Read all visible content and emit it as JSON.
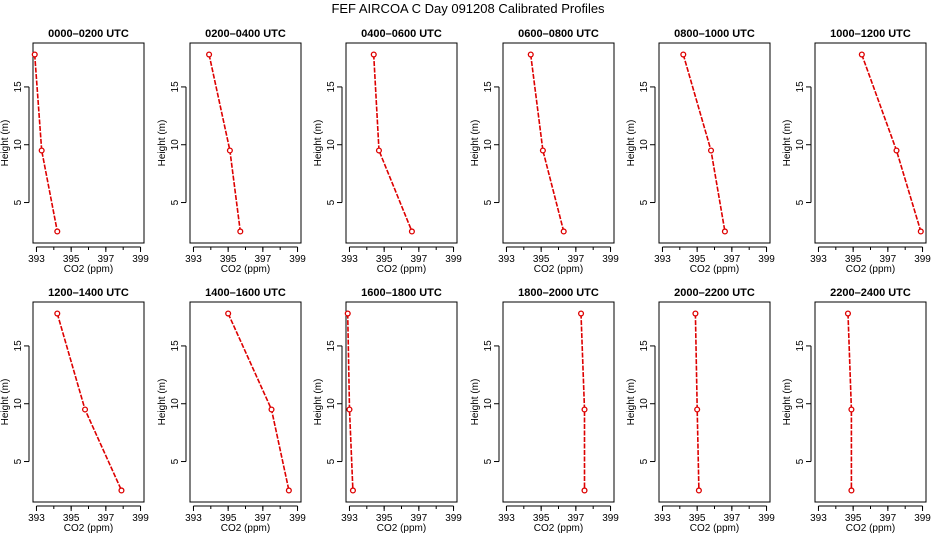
{
  "title": "FEF AIRCOA C  Day 091208  Calibrated Profiles",
  "chart_data": [
    {
      "type": "line",
      "title": "0000–0200 UTC",
      "xlabel": "CO2 (ppm)",
      "ylabel": "Height (m)",
      "xlim": [
        392.8,
        399.2
      ],
      "ylim": [
        1.5,
        18.8
      ],
      "xticks": [
        "393",
        "395",
        "397",
        "399"
      ],
      "yticks": [
        "5",
        "10",
        "15"
      ],
      "x": [
        392.9,
        393.3,
        394.2
      ],
      "y": [
        17.8,
        9.5,
        2.5
      ]
    },
    {
      "type": "line",
      "title": "0200–0400 UTC",
      "xlabel": "CO2 (ppm)",
      "ylabel": "Height (m)",
      "xlim": [
        392.8,
        399.2
      ],
      "ylim": [
        1.5,
        18.8
      ],
      "xticks": [
        "393",
        "395",
        "397",
        "399"
      ],
      "yticks": [
        "5",
        "10",
        "15"
      ],
      "x": [
        393.9,
        395.1,
        395.7
      ],
      "y": [
        17.8,
        9.5,
        2.5
      ]
    },
    {
      "type": "line",
      "title": "0400–0600 UTC",
      "xlabel": "CO2 (ppm)",
      "ylabel": "Height (m)",
      "xlim": [
        392.8,
        399.2
      ],
      "ylim": [
        1.5,
        18.8
      ],
      "xticks": [
        "393",
        "395",
        "397",
        "399"
      ],
      "yticks": [
        "5",
        "10",
        "15"
      ],
      "x": [
        394.4,
        394.7,
        396.6
      ],
      "y": [
        17.8,
        9.5,
        2.5
      ]
    },
    {
      "type": "line",
      "title": "0600–0800 UTC",
      "xlabel": "CO2 (ppm)",
      "ylabel": "Height (m)",
      "xlim": [
        392.8,
        399.2
      ],
      "ylim": [
        1.5,
        18.8
      ],
      "xticks": [
        "393",
        "395",
        "397",
        "399"
      ],
      "yticks": [
        "5",
        "10",
        "15"
      ],
      "x": [
        394.4,
        395.1,
        396.3
      ],
      "y": [
        17.8,
        9.5,
        2.5
      ]
    },
    {
      "type": "line",
      "title": "0800–1000 UTC",
      "xlabel": "CO2 (ppm)",
      "ylabel": "Height (m)",
      "xlim": [
        392.8,
        399.2
      ],
      "ylim": [
        1.5,
        18.8
      ],
      "xticks": [
        "393",
        "395",
        "397",
        "399"
      ],
      "yticks": [
        "5",
        "10",
        "15"
      ],
      "x": [
        394.2,
        395.8,
        396.6
      ],
      "y": [
        17.8,
        9.5,
        2.5
      ]
    },
    {
      "type": "line",
      "title": "1000–1200 UTC",
      "xlabel": "CO2 (ppm)",
      "ylabel": "Height (m)",
      "xlim": [
        392.8,
        399.2
      ],
      "ylim": [
        1.5,
        18.8
      ],
      "xticks": [
        "393",
        "395",
        "397",
        "399"
      ],
      "yticks": [
        "5",
        "10",
        "15"
      ],
      "x": [
        395.5,
        397.5,
        398.9
      ],
      "y": [
        17.8,
        9.5,
        2.5
      ]
    },
    {
      "type": "line",
      "title": "1200–1400 UTC",
      "xlabel": "CO2 (ppm)",
      "ylabel": "Height (m)",
      "xlim": [
        392.8,
        399.2
      ],
      "ylim": [
        1.5,
        18.8
      ],
      "xticks": [
        "393",
        "395",
        "397",
        "399"
      ],
      "yticks": [
        "5",
        "10",
        "15"
      ],
      "x": [
        394.2,
        395.8,
        397.9
      ],
      "y": [
        17.8,
        9.5,
        2.5
      ]
    },
    {
      "type": "line",
      "title": "1400–1600 UTC",
      "xlabel": "CO2 (ppm)",
      "ylabel": "Height (m)",
      "xlim": [
        392.8,
        399.2
      ],
      "ylim": [
        1.5,
        18.8
      ],
      "xticks": [
        "393",
        "395",
        "397",
        "399"
      ],
      "yticks": [
        "5",
        "10",
        "15"
      ],
      "x": [
        395.0,
        397.5,
        398.5
      ],
      "y": [
        17.8,
        9.5,
        2.5
      ]
    },
    {
      "type": "line",
      "title": "1600–1800 UTC",
      "xlabel": "CO2 (ppm)",
      "ylabel": "Height (m)",
      "xlim": [
        392.8,
        399.2
      ],
      "ylim": [
        1.5,
        18.8
      ],
      "xticks": [
        "393",
        "395",
        "397",
        "399"
      ],
      "yticks": [
        "5",
        "10",
        "15"
      ],
      "x": [
        392.9,
        393.0,
        393.2
      ],
      "y": [
        17.8,
        9.5,
        2.5
      ]
    },
    {
      "type": "line",
      "title": "1800–2000 UTC",
      "xlabel": "CO2 (ppm)",
      "ylabel": "Height (m)",
      "xlim": [
        392.8,
        399.2
      ],
      "ylim": [
        1.5,
        18.8
      ],
      "xticks": [
        "393",
        "395",
        "397",
        "399"
      ],
      "yticks": [
        "5",
        "10",
        "15"
      ],
      "x": [
        397.3,
        397.5,
        397.5
      ],
      "y": [
        17.8,
        9.5,
        2.5
      ]
    },
    {
      "type": "line",
      "title": "2000–2200 UTC",
      "xlabel": "CO2 (ppm)",
      "ylabel": "Height (m)",
      "xlim": [
        392.8,
        399.2
      ],
      "ylim": [
        1.5,
        18.8
      ],
      "xticks": [
        "393",
        "395",
        "397",
        "399"
      ],
      "yticks": [
        "5",
        "10",
        "15"
      ],
      "x": [
        394.9,
        395.0,
        395.1
      ],
      "y": [
        17.8,
        9.5,
        2.5
      ]
    },
    {
      "type": "line",
      "title": "2200–2400 UTC",
      "xlabel": "CO2 (ppm)",
      "ylabel": "Height (m)",
      "xlim": [
        392.8,
        399.2
      ],
      "ylim": [
        1.5,
        18.8
      ],
      "xticks": [
        "393",
        "395",
        "397",
        "399"
      ],
      "yticks": [
        "5",
        "10",
        "15"
      ],
      "x": [
        394.7,
        394.9,
        394.9
      ],
      "y": [
        17.8,
        9.5,
        2.5
      ]
    }
  ]
}
